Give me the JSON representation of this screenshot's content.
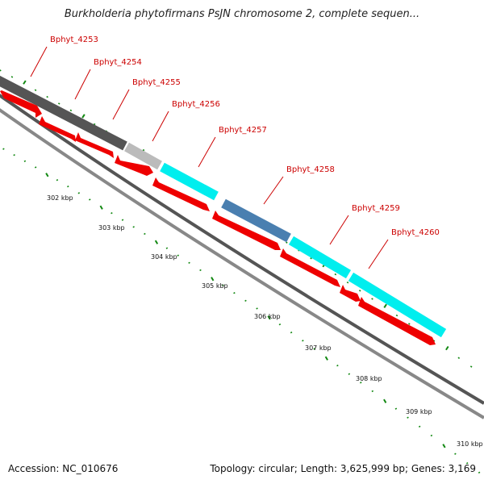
{
  "title": "Burkholderia phytofirmans PsJN chromosome 2, complete sequen...",
  "footer": {
    "accession": "Accession: NC_010676",
    "summary": "Topology: circular; Length: 3,625,999 bp; Genes: 3,169"
  },
  "colors": {
    "label_red": "#cc0000",
    "forward_cds": "#ee0000",
    "cyan_feature": "#00eeee",
    "blue_feature": "#4a7fb0",
    "dark_gray_feature": "#555555",
    "light_gray_feature": "#bbbbbb",
    "tick_green": "#118811"
  },
  "gene_labels": [
    "Bphyt_4253",
    "Bphyt_4254",
    "Bphyt_4255",
    "Bphyt_4256",
    "Bphyt_4257",
    "Bphyt_4258",
    "Bphyt_4259",
    "Bphyt_4260"
  ],
  "tick_labels": [
    "302 kbp",
    "303 kbp",
    "304 kbp",
    "305 kbp",
    "306 kbp",
    "307 kbp",
    "308 kbp",
    "309 kbp",
    "310 kbp"
  ]
}
